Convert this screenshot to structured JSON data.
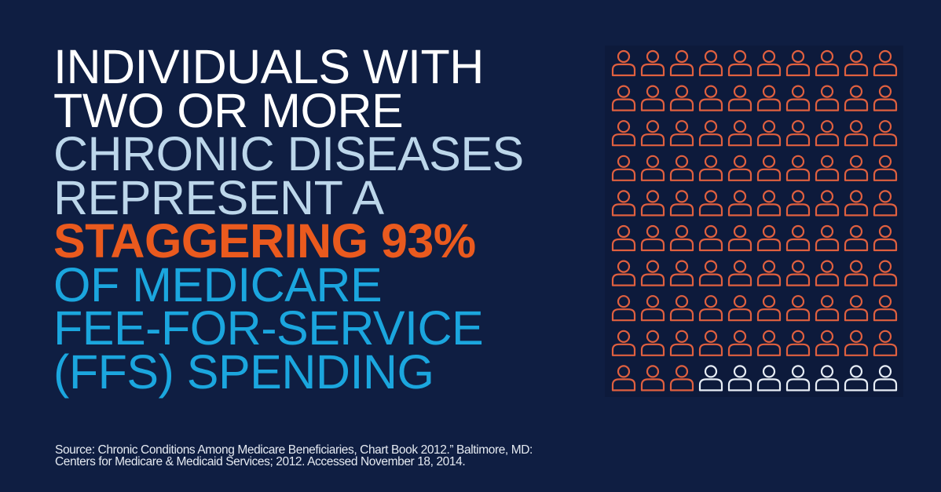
{
  "headline": {
    "lines": [
      {
        "text": "INDIVIDUALS WITH",
        "style": "white"
      },
      {
        "text": "TWO OR MORE",
        "style": "white"
      },
      {
        "text": "CHRONIC DISEASES",
        "style": "light"
      },
      {
        "text": "REPRESENT A",
        "style": "light"
      },
      {
        "text": "STAGGERING 93%",
        "style": "orange"
      },
      {
        "text": "OF MEDICARE",
        "style": "cyan"
      },
      {
        "text": "FEE-FOR-SERVICE",
        "style": "cyan"
      },
      {
        "text": "(FFS) SPENDING",
        "style": "cyan"
      }
    ]
  },
  "pictogram": {
    "icon": "person-outline-icon",
    "rows": 10,
    "columns": 10,
    "highlighted_count": 93,
    "total": 100,
    "highlight_color": "#e0603f",
    "rest_color": "#e8eef6"
  },
  "source": {
    "line1": "Source: Chronic Conditions Among Medicare Beneficiaries, Chart Book 2012.” Baltimore, MD:",
    "line2": "Centers for Medicare & Medicaid Services; 2012. Accessed November 18, 2014."
  },
  "colors": {
    "background": "#0f1e42",
    "white": "#ffffff",
    "light_blue": "#bcd6ea",
    "orange": "#ea5a1e",
    "cyan": "#1ba6de"
  }
}
